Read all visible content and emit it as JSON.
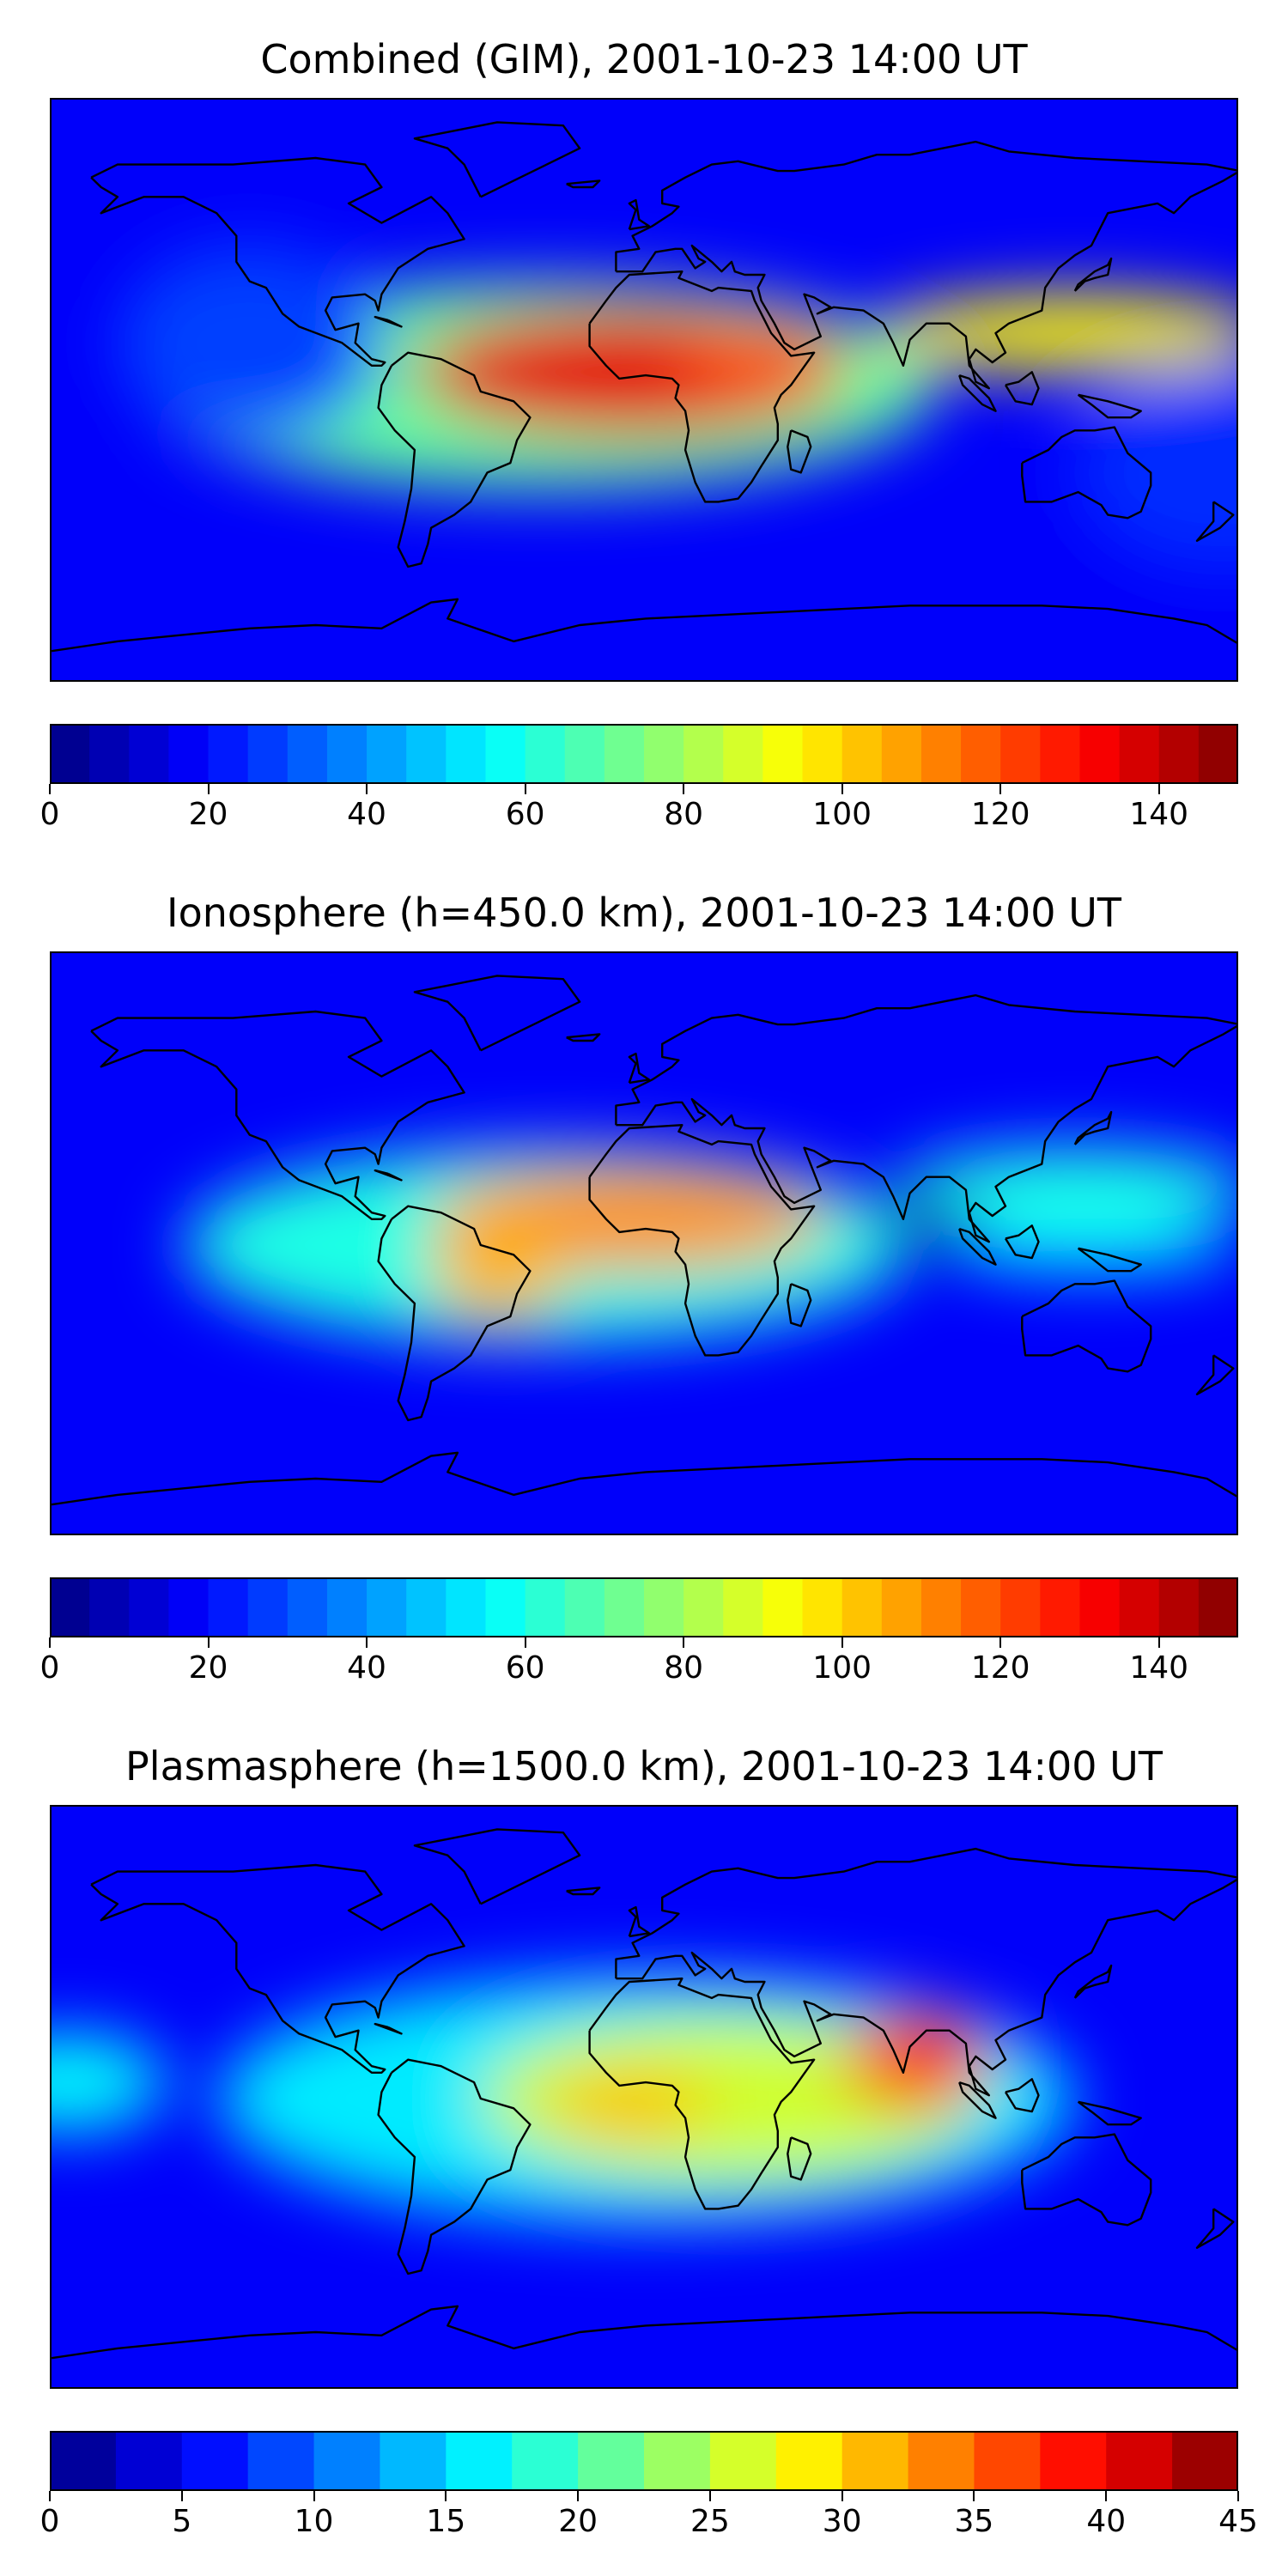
{
  "charts": [
    {
      "type": "heatmap",
      "title": "Combined (GIM), 2001-10-23 14:00 UT",
      "colorbar": {
        "min": 0,
        "max": 150,
        "levels": 30,
        "ticks": [
          0,
          20,
          40,
          60,
          80,
          100,
          120,
          140
        ]
      },
      "blobs": [
        {
          "lon": -32,
          "lat": 2,
          "rx_deg": 120,
          "ry_deg": 32,
          "value": 70
        },
        {
          "lon": -5,
          "lat": 6,
          "rx_deg": 65,
          "ry_deg": 20,
          "value": 135
        },
        {
          "lon": 35,
          "lat": 10,
          "rx_deg": 25,
          "ry_deg": 12,
          "value": 120
        },
        {
          "lon": 130,
          "lat": 18,
          "rx_deg": 60,
          "ry_deg": 12,
          "value": 95
        },
        {
          "lon": -120,
          "lat": 15,
          "rx_deg": 40,
          "ry_deg": 30,
          "value": 28
        },
        {
          "lon": 175,
          "lat": -25,
          "rx_deg": 45,
          "ry_deg": 30,
          "value": 25
        }
      ]
    },
    {
      "type": "heatmap",
      "title": "Ionosphere  (h=450.0 km), 2001-10-23 14:00 UT",
      "colorbar": {
        "min": 0,
        "max": 150,
        "levels": 30,
        "ticks": [
          0,
          20,
          40,
          60,
          80,
          100,
          120,
          140
        ]
      },
      "blobs": [
        {
          "lon": -30,
          "lat": 0,
          "rx_deg": 110,
          "ry_deg": 30,
          "value": 60
        },
        {
          "lon": -5,
          "lat": 8,
          "rx_deg": 60,
          "ry_deg": 16,
          "value": 110
        },
        {
          "lon": -45,
          "lat": -8,
          "rx_deg": 20,
          "ry_deg": 15,
          "value": 105
        },
        {
          "lon": 130,
          "lat": 18,
          "rx_deg": 55,
          "ry_deg": 12,
          "value": 60
        },
        {
          "lon": 135,
          "lat": 0,
          "rx_deg": 45,
          "ry_deg": 8,
          "value": 55
        },
        {
          "lon": 85,
          "lat": 8,
          "rx_deg": 15,
          "ry_deg": 8,
          "value": 5
        }
      ]
    },
    {
      "type": "heatmap",
      "title": "Plasmasphere (h=1500.0 km), 2001-10-23 14:00 UT",
      "colorbar": {
        "min": 0,
        "max": 45,
        "levels": 18,
        "ticks": [
          0,
          5,
          10,
          15,
          20,
          25,
          30,
          35,
          40,
          45
        ]
      },
      "blobs": [
        {
          "lon": 0,
          "lat": 0,
          "rx_deg": 130,
          "ry_deg": 38,
          "value": 16
        },
        {
          "lon": 25,
          "lat": 0,
          "rx_deg": 75,
          "ry_deg": 25,
          "value": 26
        },
        {
          "lon": -5,
          "lat": -2,
          "rx_deg": 25,
          "ry_deg": 10,
          "value": 31
        },
        {
          "lon": 82,
          "lat": 12,
          "rx_deg": 22,
          "ry_deg": 15,
          "value": 38
        },
        {
          "lon": -175,
          "lat": 5,
          "rx_deg": 30,
          "ry_deg": 15,
          "value": 17
        }
      ]
    }
  ]
}
